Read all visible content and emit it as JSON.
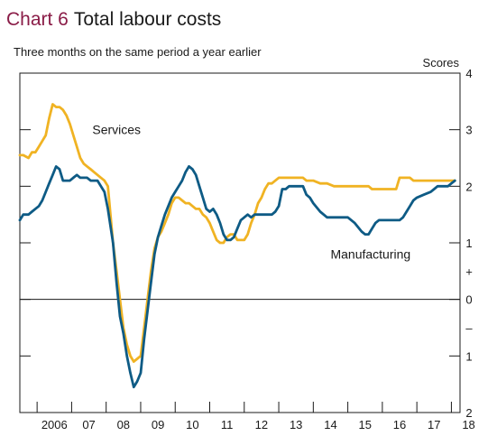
{
  "title": {
    "number": "Chart 6",
    "text": "Total labour costs"
  },
  "subtitle": "Three months on the same period a year earlier",
  "colors": {
    "services": "#f0b323",
    "manufacturing": "#0e5b85",
    "title_number": "#8a1c47"
  },
  "chart_data": {
    "type": "line",
    "title": "Total labour costs",
    "subtitle": "Three months on the same period a year earlier",
    "ylabel": "Scores",
    "ylim": [
      -2,
      4
    ],
    "xlim": [
      2005.5,
      2018.25
    ],
    "x_tick_labels": [
      "2006",
      "07",
      "08",
      "09",
      "10",
      "11",
      "12",
      "13",
      "14",
      "15",
      "16",
      "17",
      "18"
    ],
    "y_tick_labels": [
      "2",
      "1",
      "–",
      "0",
      "+",
      "1",
      "2",
      "3",
      "4"
    ],
    "grid": false,
    "zero_line": true,
    "series": [
      {
        "name": "Services",
        "color": "#f0b323",
        "x": [
          2005.5,
          2005.6,
          2005.75,
          2005.85,
          2005.95,
          2006.05,
          2006.15,
          2006.25,
          2006.35,
          2006.45,
          2006.55,
          2006.65,
          2006.75,
          2006.85,
          2006.95,
          2007.05,
          2007.15,
          2007.25,
          2007.35,
          2007.45,
          2007.55,
          2007.65,
          2007.75,
          2007.85,
          2007.95,
          2008.05,
          2008.2,
          2008.3,
          2008.4,
          2008.5,
          2008.6,
          2008.7,
          2008.8,
          2008.9,
          2009.0,
          2009.1,
          2009.2,
          2009.3,
          2009.4,
          2009.5,
          2009.6,
          2009.7,
          2009.8,
          2009.9,
          2010.0,
          2010.1,
          2010.2,
          2010.3,
          2010.4,
          2010.5,
          2010.6,
          2010.7,
          2010.8,
          2010.9,
          2011.0,
          2011.1,
          2011.2,
          2011.3,
          2011.4,
          2011.5,
          2011.6,
          2011.7,
          2011.8,
          2011.9,
          2012.0,
          2012.1,
          2012.2,
          2012.3,
          2012.4,
          2012.5,
          2012.6,
          2012.7,
          2012.8,
          2012.9,
          2013.0,
          2013.1,
          2013.2,
          2013.3,
          2013.4,
          2013.5,
          2013.6,
          2013.7,
          2013.8,
          2013.9,
          2014.0,
          2014.2,
          2014.4,
          2014.6,
          2014.8,
          2015.0,
          2015.2,
          2015.4,
          2015.5,
          2015.6,
          2015.7,
          2015.8,
          2015.9,
          2016.0,
          2016.2,
          2016.4,
          2016.5,
          2016.6,
          2016.7,
          2016.8,
          2016.9,
          2017.0,
          2017.2,
          2017.4,
          2017.5,
          2017.6,
          2017.7,
          2017.8,
          2017.9,
          2018.0,
          2018.1
        ],
        "values": [
          2.55,
          2.55,
          2.5,
          2.6,
          2.6,
          2.7,
          2.8,
          2.9,
          3.2,
          3.45,
          3.4,
          3.4,
          3.35,
          3.25,
          3.1,
          2.9,
          2.7,
          2.5,
          2.4,
          2.35,
          2.3,
          2.25,
          2.2,
          2.15,
          2.1,
          2.0,
          1.0,
          0.5,
          0.0,
          -0.5,
          -0.8,
          -1.0,
          -1.1,
          -1.05,
          -1.0,
          -0.5,
          0.0,
          0.5,
          0.9,
          1.1,
          1.2,
          1.35,
          1.5,
          1.7,
          1.8,
          1.8,
          1.75,
          1.7,
          1.7,
          1.65,
          1.6,
          1.6,
          1.5,
          1.45,
          1.35,
          1.2,
          1.05,
          1.0,
          1.0,
          1.1,
          1.15,
          1.15,
          1.05,
          1.05,
          1.05,
          1.15,
          1.35,
          1.5,
          1.7,
          1.8,
          1.95,
          2.05,
          2.05,
          2.1,
          2.15,
          2.15,
          2.15,
          2.15,
          2.15,
          2.15,
          2.15,
          2.15,
          2.1,
          2.1,
          2.1,
          2.05,
          2.05,
          2.0,
          2.0,
          2.0,
          2.0,
          2.0,
          2.0,
          2.0,
          1.95,
          1.95,
          1.95,
          1.95,
          1.95,
          1.95,
          2.15,
          2.15,
          2.15,
          2.15,
          2.1,
          2.1,
          2.1,
          2.1,
          2.1,
          2.1,
          2.1,
          2.1,
          2.1,
          2.1,
          2.1
        ]
      },
      {
        "name": "Manufacturing",
        "color": "#0e5b85",
        "x": [
          2005.5,
          2005.6,
          2005.75,
          2005.85,
          2005.95,
          2006.05,
          2006.15,
          2006.25,
          2006.35,
          2006.45,
          2006.55,
          2006.65,
          2006.75,
          2006.85,
          2006.95,
          2007.05,
          2007.15,
          2007.25,
          2007.35,
          2007.45,
          2007.55,
          2007.65,
          2007.75,
          2007.85,
          2007.95,
          2008.05,
          2008.2,
          2008.3,
          2008.4,
          2008.5,
          2008.6,
          2008.7,
          2008.8,
          2008.9,
          2009.0,
          2009.1,
          2009.2,
          2009.3,
          2009.4,
          2009.5,
          2009.6,
          2009.7,
          2009.8,
          2009.9,
          2010.0,
          2010.1,
          2010.2,
          2010.3,
          2010.4,
          2010.5,
          2010.6,
          2010.7,
          2010.8,
          2010.9,
          2011.0,
          2011.1,
          2011.2,
          2011.3,
          2011.4,
          2011.5,
          2011.6,
          2011.7,
          2011.8,
          2011.9,
          2012.0,
          2012.1,
          2012.2,
          2012.3,
          2012.4,
          2012.5,
          2012.6,
          2012.7,
          2012.8,
          2012.9,
          2013.0,
          2013.1,
          2013.2,
          2013.3,
          2013.4,
          2013.5,
          2013.6,
          2013.7,
          2013.8,
          2013.9,
          2014.0,
          2014.2,
          2014.4,
          2014.6,
          2014.8,
          2015.0,
          2015.2,
          2015.4,
          2015.5,
          2015.6,
          2015.7,
          2015.8,
          2015.9,
          2016.0,
          2016.2,
          2016.4,
          2016.5,
          2016.6,
          2016.7,
          2016.8,
          2016.9,
          2017.0,
          2017.2,
          2017.4,
          2017.5,
          2017.6,
          2017.7,
          2017.8,
          2017.9,
          2018.0,
          2018.1
        ],
        "values": [
          1.4,
          1.5,
          1.5,
          1.55,
          1.6,
          1.65,
          1.75,
          1.9,
          2.05,
          2.2,
          2.35,
          2.3,
          2.1,
          2.1,
          2.1,
          2.15,
          2.2,
          2.15,
          2.15,
          2.15,
          2.1,
          2.1,
          2.1,
          2.0,
          1.9,
          1.6,
          1.0,
          0.3,
          -0.3,
          -0.6,
          -1.0,
          -1.3,
          -1.55,
          -1.45,
          -1.3,
          -0.7,
          -0.2,
          0.3,
          0.8,
          1.1,
          1.3,
          1.5,
          1.65,
          1.8,
          1.9,
          2.0,
          2.1,
          2.25,
          2.35,
          2.3,
          2.2,
          2.0,
          1.8,
          1.6,
          1.55,
          1.6,
          1.5,
          1.35,
          1.15,
          1.05,
          1.05,
          1.1,
          1.25,
          1.4,
          1.45,
          1.5,
          1.45,
          1.5,
          1.5,
          1.5,
          1.5,
          1.5,
          1.5,
          1.55,
          1.65,
          1.95,
          1.95,
          2.0,
          2.0,
          2.0,
          2.0,
          2.0,
          1.85,
          1.8,
          1.7,
          1.55,
          1.45,
          1.45,
          1.45,
          1.45,
          1.35,
          1.2,
          1.15,
          1.15,
          1.25,
          1.35,
          1.4,
          1.4,
          1.4,
          1.4,
          1.4,
          1.45,
          1.55,
          1.65,
          1.75,
          1.8,
          1.85,
          1.9,
          1.95,
          2.0,
          2.0,
          2.0,
          2.0,
          2.05,
          2.1
        ]
      }
    ],
    "annotations": [
      "Services",
      "Manufacturing"
    ]
  }
}
